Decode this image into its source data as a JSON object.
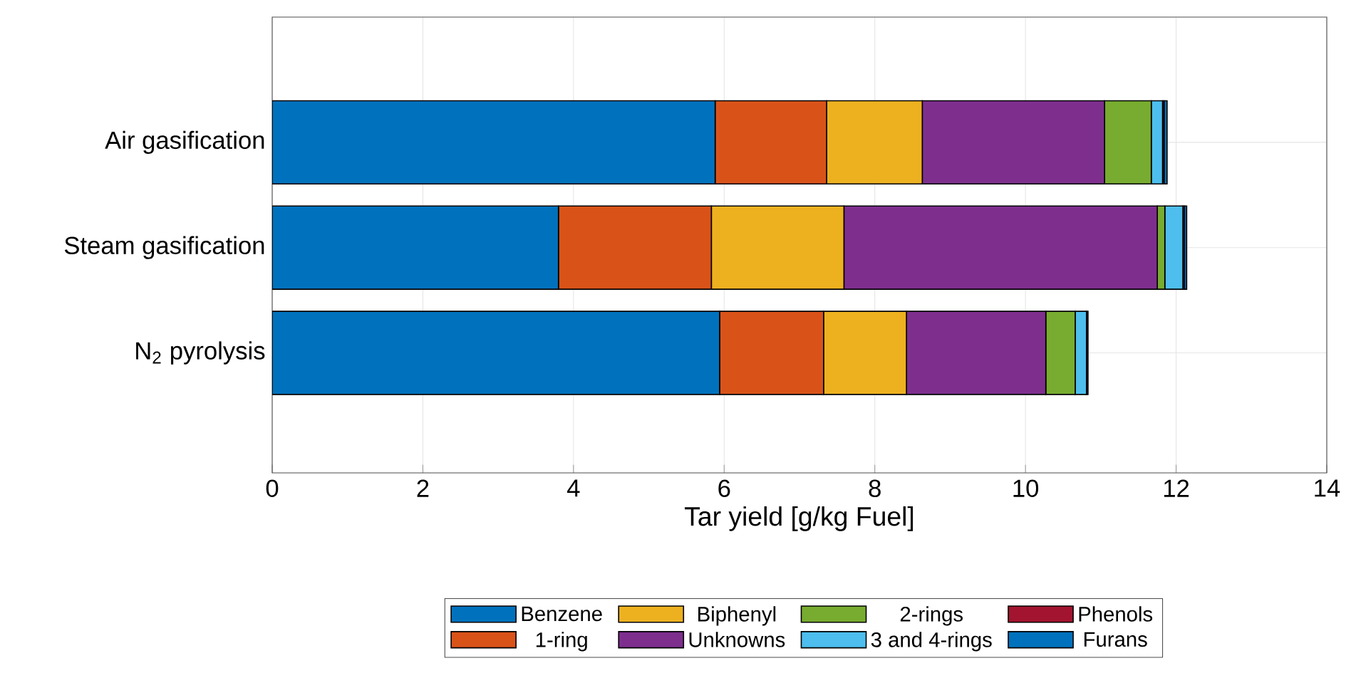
{
  "chart_data": {
    "type": "bar",
    "orientation": "horizontal",
    "stacked": true,
    "xlabel": "Tar yield [g/kg Fuel]",
    "categories": [
      "Air gasification",
      "Steam gasification",
      "N$_{2}$ pyrolysis"
    ],
    "series": [
      {
        "name": "Benzene",
        "color": "#0072bd",
        "values": [
          5.88,
          3.8,
          5.94
        ]
      },
      {
        "name": "1-ring",
        "color": "#d95319",
        "values": [
          1.48,
          2.03,
          1.38
        ]
      },
      {
        "name": "Biphenyl",
        "color": "#edb120",
        "values": [
          1.27,
          1.76,
          1.1
        ]
      },
      {
        "name": "Unknowns",
        "color": "#7e2f8e",
        "values": [
          2.42,
          4.16,
          1.85
        ]
      },
      {
        "name": "2-rings",
        "color": "#77ac30",
        "values": [
          0.62,
          0.1,
          0.39
        ]
      },
      {
        "name": "3 and 4-rings",
        "color": "#4dbeee",
        "values": [
          0.15,
          0.24,
          0.15
        ]
      },
      {
        "name": "Phenols",
        "color": "#a2142f",
        "values": [
          0.02,
          0.02,
          0
        ]
      },
      {
        "name": "Furans",
        "color": "#0072bd",
        "values": [
          0.04,
          0.03,
          0.02
        ]
      }
    ],
    "xlim": [
      0,
      14
    ],
    "xticks": [
      0,
      2,
      4,
      6,
      8,
      10,
      12,
      14
    ],
    "grid": true,
    "legend": "bottom"
  }
}
